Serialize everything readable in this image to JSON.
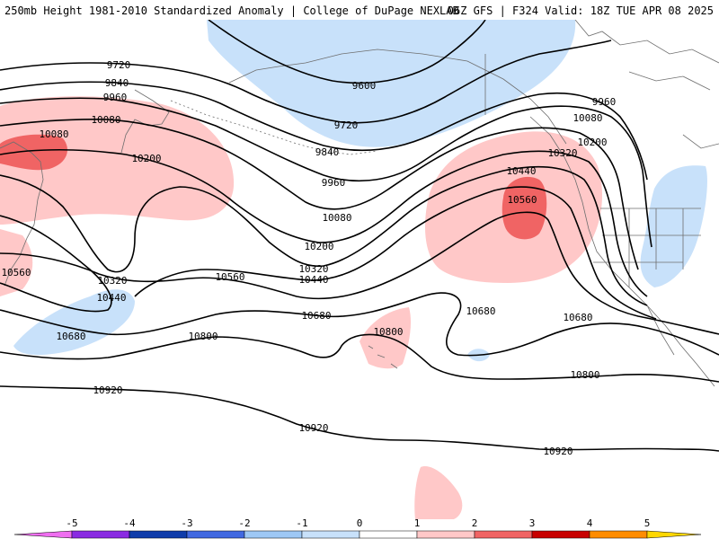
{
  "header": {
    "title": "250mb Height 1981-2010 Standardized Anomaly | College of DuPage NEXLAB",
    "run_info": "06Z GFS | F324 Valid: 18Z TUE APR 08 2025"
  },
  "map": {
    "contour_labels": [
      "9600",
      "9720",
      "9720",
      "9840",
      "9840",
      "9960",
      "9960",
      "9960",
      "10080",
      "10080",
      "10080",
      "10080",
      "10200",
      "10200",
      "10200",
      "10320",
      "10320",
      "10320",
      "10440",
      "10440",
      "10440",
      "10560",
      "10560",
      "10560",
      "10680",
      "10680",
      "10680",
      "10680",
      "10800",
      "10800",
      "10800",
      "10920",
      "10920",
      "10920"
    ],
    "colors": {
      "light_positive": "#ffc8c8",
      "strong_positive": "#f06464",
      "light_negative": "#c8e1fa",
      "contour": "#000000",
      "coastline": "#6e6e6e"
    }
  },
  "colorbar": {
    "ticks": [
      "-5",
      "-4",
      "-3",
      "-2",
      "-1",
      "0",
      "1",
      "2",
      "3",
      "4",
      "5"
    ],
    "colors": [
      "#ef6ef0",
      "#8a2be2",
      "#0f3caa",
      "#4169e1",
      "#9ec8f5",
      "#c8e1fa",
      "#ffffff",
      "#ffc8c8",
      "#f06464",
      "#c80000",
      "#ff8c00",
      "#ffd700"
    ]
  }
}
